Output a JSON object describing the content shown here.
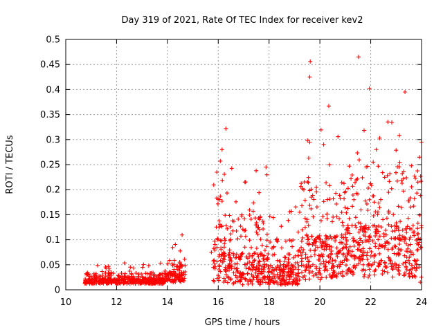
{
  "chart_data": {
    "type": "scatter",
    "title": "Day 319 of 2021, Rate Of TEC Index for receiver kev2",
    "xlabel": "GPS time / hours",
    "ylabel": "ROTI / TECUs",
    "xlim": [
      10,
      24
    ],
    "ylim": [
      0,
      0.5
    ],
    "xticks": [
      10,
      12,
      14,
      16,
      18,
      20,
      22,
      24
    ],
    "yticks": [
      0,
      0.05,
      0.1,
      0.15,
      0.2,
      0.25,
      0.3,
      0.35,
      0.4,
      0.45,
      0.5
    ],
    "xtick_labels": [
      "10",
      "12",
      "14",
      "16",
      "18",
      "20",
      "22",
      "24"
    ],
    "ytick_labels": [
      "0",
      "0.05",
      "0.1",
      "0.15",
      "0.2",
      "0.25",
      "0.3",
      "0.35",
      "0.4",
      "0.45",
      "0.5"
    ],
    "grid": true,
    "marker": "+",
    "series_color": "#ff0000",
    "notable_points": [
      {
        "x": 15.73,
        "y": 0.075
      },
      {
        "x": 16.15,
        "y": 0.28
      },
      {
        "x": 16.3,
        "y": 0.322
      },
      {
        "x": 17.05,
        "y": 0.215
      },
      {
        "x": 17.88,
        "y": 0.245
      },
      {
        "x": 19.62,
        "y": 0.456
      },
      {
        "x": 19.6,
        "y": 0.425
      },
      {
        "x": 20.35,
        "y": 0.367
      },
      {
        "x": 21.52,
        "y": 0.465
      },
      {
        "x": 21.95,
        "y": 0.402
      },
      {
        "x": 23.35,
        "y": 0.395
      },
      {
        "x": 23.95,
        "y": 0.015
      }
    ],
    "segments": [
      {
        "x_start": 10.75,
        "x_end": 14.0,
        "base": 0.012,
        "spread": 0.022,
        "max": 0.055
      },
      {
        "x_start": 14.0,
        "x_end": 14.7,
        "base": 0.015,
        "spread": 0.045,
        "max": 0.11
      },
      {
        "x_start": 15.8,
        "x_end": 16.3,
        "base": 0.015,
        "spread": 0.2,
        "max": 0.28
      },
      {
        "x_start": 16.3,
        "x_end": 18.0,
        "base": 0.01,
        "spread": 0.14,
        "max": 0.245
      },
      {
        "x_start": 18.0,
        "x_end": 19.2,
        "base": 0.01,
        "spread": 0.09,
        "max": 0.17
      },
      {
        "x_start": 19.2,
        "x_end": 21.0,
        "base": 0.02,
        "spread": 0.2,
        "max": 0.33
      },
      {
        "x_start": 21.0,
        "x_end": 24.0,
        "base": 0.025,
        "spread": 0.23,
        "max": 0.36
      }
    ]
  }
}
